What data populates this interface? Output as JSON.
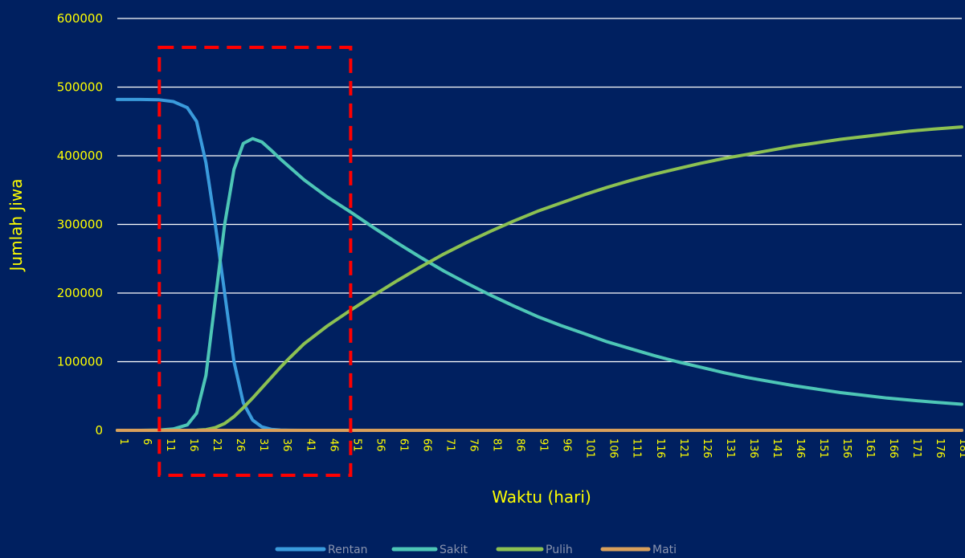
{
  "chart_data": {
    "type": "line",
    "title": "",
    "xlabel": "Waktu (hari)",
    "ylabel": "Jumlah Jiwa",
    "ylim": [
      0,
      600000
    ],
    "y_ticks": [
      0,
      100000,
      200000,
      300000,
      400000,
      500000,
      600000
    ],
    "x_range": [
      1,
      182
    ],
    "x_tick_labels": [
      "1",
      "6",
      "11",
      "16",
      "21",
      "26",
      "31",
      "36",
      "41",
      "46",
      "51",
      "56",
      "61",
      "66",
      "71",
      "76",
      "81",
      "86",
      "91",
      "96",
      "101",
      "106",
      "111",
      "116",
      "121",
      "126",
      "131",
      "136",
      "141",
      "146",
      "151",
      "156",
      "161",
      "166",
      "171",
      "176",
      "181"
    ],
    "grid": "horizontal",
    "legend_position": "bottom",
    "highlight_box": {
      "x_from": 10,
      "x_to": 51,
      "style": "red dashed"
    },
    "x": [
      1,
      6,
      10,
      13,
      16,
      18,
      20,
      22,
      24,
      26,
      28,
      30,
      32,
      34,
      36,
      38,
      41,
      46,
      51,
      56,
      61,
      66,
      71,
      76,
      81,
      86,
      91,
      96,
      101,
      106,
      111,
      116,
      121,
      126,
      131,
      136,
      141,
      146,
      151,
      156,
      161,
      166,
      171,
      176,
      182
    ],
    "series": [
      {
        "name": "Rentan",
        "color": "#3A9BDC",
        "values": [
          482000,
          482000,
          481500,
          479000,
          470000,
          450000,
          390000,
          300000,
          200000,
          100000,
          40000,
          15000,
          5000,
          1500,
          500,
          100,
          0,
          0,
          0,
          0,
          0,
          0,
          0,
          0,
          0,
          0,
          0,
          0,
          0,
          0,
          0,
          0,
          0,
          0,
          0,
          0,
          0,
          0,
          0,
          0,
          0,
          0,
          0,
          0,
          0
        ]
      },
      {
        "name": "Sakit",
        "color": "#4DC6B6",
        "values": [
          0,
          0,
          500,
          2000,
          8000,
          25000,
          80000,
          190000,
          300000,
          380000,
          418000,
          425000,
          420000,
          408000,
          395000,
          383000,
          365000,
          340000,
          318000,
          295000,
          273000,
          252000,
          232000,
          214000,
          197000,
          181000,
          166000,
          153000,
          141000,
          129000,
          119000,
          109000,
          100000,
          92000,
          84000,
          77000,
          71000,
          65000,
          60000,
          55000,
          51000,
          47000,
          44000,
          41000,
          38000
        ]
      },
      {
        "name": "Pulih",
        "color": "#8CC152",
        "values": [
          0,
          0,
          0,
          0,
          0,
          200,
          1000,
          4000,
          10000,
          20000,
          33000,
          47000,
          62000,
          77000,
          92000,
          106000,
          126000,
          152000,
          175000,
          197000,
          218000,
          238000,
          257000,
          274000,
          290000,
          305000,
          319000,
          331000,
          343000,
          354000,
          364000,
          373000,
          381000,
          389000,
          396000,
          402000,
          408000,
          414000,
          419000,
          424000,
          428000,
          432000,
          436000,
          439000,
          442000
        ]
      },
      {
        "name": "Mati",
        "color": "#D9A05B",
        "values": [
          0,
          0,
          0,
          0,
          0,
          0,
          0,
          0,
          0,
          0,
          0,
          0,
          0,
          0,
          0,
          0,
          0,
          0,
          0,
          0,
          0,
          0,
          0,
          0,
          0,
          0,
          0,
          0,
          0,
          0,
          0,
          0,
          0,
          0,
          0,
          0,
          0,
          0,
          0,
          0,
          0,
          0,
          0,
          0,
          0
        ]
      }
    ]
  }
}
